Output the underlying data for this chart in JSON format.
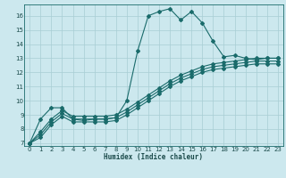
{
  "xlabel": "Humidex (Indice chaleur)",
  "background_color": "#cce8ee",
  "grid_color": "#a8cdd4",
  "line_color": "#1a6b6b",
  "xlim": [
    -0.5,
    23.5
  ],
  "ylim": [
    6.8,
    16.8
  ],
  "yticks": [
    7,
    8,
    9,
    10,
    11,
    12,
    13,
    14,
    15,
    16
  ],
  "xticks": [
    0,
    1,
    2,
    3,
    4,
    5,
    6,
    7,
    8,
    9,
    10,
    11,
    12,
    13,
    14,
    15,
    16,
    17,
    18,
    19,
    20,
    21,
    22,
    23
  ],
  "series1_x": [
    0,
    1,
    2,
    3,
    4,
    5,
    6,
    7,
    8,
    9,
    10,
    11,
    12,
    13,
    14,
    15,
    16,
    17,
    18,
    19,
    20,
    21,
    22,
    23
  ],
  "series1_y": [
    7.0,
    8.7,
    9.5,
    9.5,
    8.7,
    8.6,
    8.7,
    8.7,
    8.8,
    10.0,
    13.5,
    16.0,
    16.3,
    16.5,
    15.7,
    16.3,
    15.5,
    14.2,
    13.1,
    13.2,
    13.0,
    12.9,
    13.0,
    13.0
  ],
  "series2_x": [
    0,
    1,
    2,
    3,
    4,
    5,
    6,
    7,
    8,
    9,
    10,
    11,
    12,
    13,
    14,
    15,
    16,
    17,
    18,
    19,
    20,
    21,
    22,
    23
  ],
  "series2_y": [
    7.0,
    7.8,
    8.7,
    9.3,
    8.9,
    8.9,
    8.9,
    8.9,
    9.0,
    9.4,
    9.9,
    10.4,
    10.9,
    11.4,
    11.8,
    12.1,
    12.4,
    12.6,
    12.7,
    12.8,
    12.9,
    13.0,
    13.0,
    13.0
  ],
  "series3_x": [
    0,
    1,
    2,
    3,
    4,
    5,
    6,
    7,
    8,
    9,
    10,
    11,
    12,
    13,
    14,
    15,
    16,
    17,
    18,
    19,
    20,
    21,
    22,
    23
  ],
  "series3_y": [
    7.0,
    7.6,
    8.5,
    9.1,
    8.7,
    8.7,
    8.7,
    8.7,
    8.8,
    9.2,
    9.7,
    10.2,
    10.7,
    11.2,
    11.6,
    11.9,
    12.2,
    12.4,
    12.5,
    12.6,
    12.7,
    12.8,
    12.8,
    12.8
  ],
  "series4_x": [
    0,
    1,
    2,
    3,
    4,
    5,
    6,
    7,
    8,
    9,
    10,
    11,
    12,
    13,
    14,
    15,
    16,
    17,
    18,
    19,
    20,
    21,
    22,
    23
  ],
  "series4_y": [
    7.0,
    7.4,
    8.3,
    8.9,
    8.5,
    8.5,
    8.5,
    8.5,
    8.6,
    9.0,
    9.5,
    10.0,
    10.5,
    11.0,
    11.4,
    11.7,
    12.0,
    12.2,
    12.3,
    12.4,
    12.5,
    12.6,
    12.6,
    12.6
  ]
}
